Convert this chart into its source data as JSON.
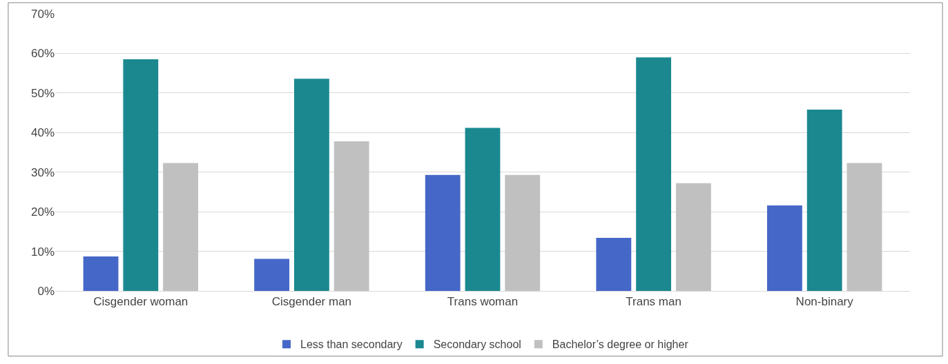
{
  "chart_data": {
    "type": "bar",
    "categories": [
      "Cisgender woman",
      "Cisgender man",
      "Trans woman",
      "Trans man",
      "Non-binary"
    ],
    "series": [
      {
        "name": "Less than secondary",
        "color": "#4567c8",
        "values": [
          8.7,
          8.1,
          29.3,
          13.4,
          21.6
        ]
      },
      {
        "name": "Secondary school",
        "color": "#1b8890",
        "values": [
          58.5,
          53.6,
          41.2,
          59.0,
          45.8
        ]
      },
      {
        "name": "Bachelor’s degree or higher",
        "color": "#c0c0c0",
        "values": [
          32.3,
          37.8,
          29.3,
          27.2,
          32.3
        ]
      }
    ],
    "ylim": [
      0,
      70
    ],
    "yticks": [
      {
        "value": 0,
        "label": "0%"
      },
      {
        "value": 10,
        "label": "10%"
      },
      {
        "value": 20,
        "label": "20%"
      },
      {
        "value": 30,
        "label": "30%"
      },
      {
        "value": 40,
        "label": "40%"
      },
      {
        "value": 50,
        "label": "50%"
      },
      {
        "value": 60,
        "label": "60%"
      },
      {
        "value": 70,
        "label": "70%"
      }
    ],
    "grid": "y",
    "legend": "bottom"
  }
}
